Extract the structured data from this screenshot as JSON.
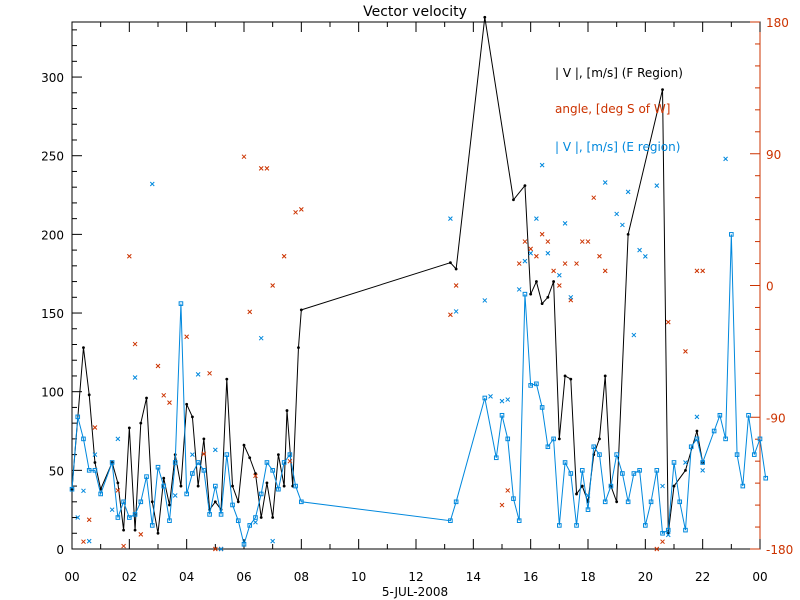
{
  "chart_data": {
    "type": "line",
    "title": "Vector velocity",
    "date_label": "5-JUL-2008",
    "x_ticks": [
      "00",
      "02",
      "04",
      "06",
      "08",
      "10",
      "12",
      "14",
      "16",
      "18",
      "20",
      "22",
      "00"
    ],
    "x_range_hours": [
      0,
      24
    ],
    "y_left_ticks": [
      "0",
      "50",
      "100",
      "150",
      "200",
      "250",
      "300"
    ],
    "y_left_range": [
      0,
      335
    ],
    "y_right_ticks": [
      "-180",
      "-90",
      "0",
      "90",
      "180"
    ],
    "y_right_range": [
      -180,
      180
    ],
    "legend": [
      {
        "label": "| V |, [m/s] (F Region)",
        "color": "#000000"
      },
      {
        "label": "angle, [deg S of W]",
        "color": "#cc3300"
      },
      {
        "label": "| V |, [m/s] (E region)",
        "color": "#0088dd"
      }
    ],
    "series": [
      {
        "name": "| V |, [m/s] (F Region)",
        "color": "#000000",
        "marker": "dot",
        "points": [
          [
            0.0,
            38
          ],
          [
            0.4,
            128
          ],
          [
            0.6,
            98
          ],
          [
            0.8,
            55
          ],
          [
            1.0,
            38
          ],
          [
            1.4,
            55
          ],
          [
            1.6,
            42
          ],
          [
            1.8,
            12
          ],
          [
            2.0,
            77
          ],
          [
            2.2,
            12
          ],
          [
            2.4,
            80
          ],
          [
            2.6,
            96
          ],
          [
            2.8,
            30
          ],
          [
            3.0,
            10
          ],
          [
            3.2,
            45
          ],
          [
            3.4,
            28
          ],
          [
            3.6,
            60
          ],
          [
            3.8,
            40
          ],
          [
            4.0,
            92
          ],
          [
            4.2,
            84
          ],
          [
            4.4,
            40
          ],
          [
            4.6,
            70
          ],
          [
            4.8,
            25
          ],
          [
            5.0,
            30
          ],
          [
            5.2,
            25
          ],
          [
            5.4,
            108
          ],
          [
            5.6,
            40
          ],
          [
            5.8,
            30
          ],
          [
            6.0,
            66
          ],
          [
            6.2,
            58
          ],
          [
            6.4,
            48
          ],
          [
            6.6,
            20
          ],
          [
            6.8,
            42
          ],
          [
            7.0,
            20
          ],
          [
            7.2,
            60
          ],
          [
            7.4,
            40
          ],
          [
            7.5,
            88
          ],
          [
            7.7,
            40
          ],
          [
            7.9,
            128
          ],
          [
            8.0,
            152
          ],
          [
            13.2,
            182
          ],
          [
            13.4,
            178
          ],
          [
            14.4,
            338
          ],
          [
            15.4,
            222
          ],
          [
            15.8,
            231
          ],
          [
            16.0,
            162
          ],
          [
            16.2,
            170
          ],
          [
            16.4,
            156
          ],
          [
            16.6,
            160
          ],
          [
            16.8,
            170
          ],
          [
            17.0,
            70
          ],
          [
            17.2,
            110
          ],
          [
            17.4,
            108
          ],
          [
            17.6,
            35
          ],
          [
            17.8,
            40
          ],
          [
            18.0,
            30
          ],
          [
            18.2,
            60
          ],
          [
            18.4,
            70
          ],
          [
            18.6,
            110
          ],
          [
            18.8,
            40
          ],
          [
            19.0,
            30
          ],
          [
            19.4,
            200
          ],
          [
            20.6,
            292
          ],
          [
            20.8,
            10
          ],
          [
            21.0,
            40
          ],
          [
            21.4,
            50
          ],
          [
            21.8,
            75
          ],
          [
            22.0,
            55
          ]
        ]
      },
      {
        "name": "| V |, [m/s] (E region)",
        "color": "#0088dd",
        "marker": "square",
        "points": [
          [
            0.0,
            38
          ],
          [
            0.2,
            84
          ],
          [
            0.4,
            70
          ],
          [
            0.6,
            50
          ],
          [
            0.8,
            50
          ],
          [
            1.0,
            35
          ],
          [
            1.4,
            55
          ],
          [
            1.6,
            20
          ],
          [
            1.8,
            30
          ],
          [
            2.0,
            20
          ],
          [
            2.2,
            22
          ],
          [
            2.4,
            30
          ],
          [
            2.6,
            46
          ],
          [
            2.8,
            15
          ],
          [
            3.0,
            52
          ],
          [
            3.2,
            40
          ],
          [
            3.4,
            18
          ],
          [
            3.6,
            55
          ],
          [
            3.8,
            156
          ],
          [
            4.0,
            35
          ],
          [
            4.2,
            48
          ],
          [
            4.4,
            55
          ],
          [
            4.6,
            50
          ],
          [
            4.8,
            22
          ],
          [
            5.0,
            40
          ],
          [
            5.2,
            22
          ],
          [
            5.4,
            60
          ],
          [
            5.6,
            28
          ],
          [
            5.8,
            18
          ],
          [
            6.0,
            3
          ],
          [
            6.2,
            15
          ],
          [
            6.4,
            20
          ],
          [
            6.6,
            35
          ],
          [
            6.8,
            55
          ],
          [
            7.0,
            50
          ],
          [
            7.2,
            38
          ],
          [
            7.4,
            55
          ],
          [
            7.6,
            60
          ],
          [
            7.8,
            40
          ],
          [
            8.0,
            30
          ],
          [
            13.2,
            18
          ],
          [
            13.4,
            30
          ],
          [
            14.4,
            96
          ],
          [
            14.8,
            58
          ],
          [
            15.0,
            85
          ],
          [
            15.2,
            70
          ],
          [
            15.4,
            32
          ],
          [
            15.6,
            18
          ],
          [
            15.8,
            162
          ],
          [
            16.0,
            104
          ],
          [
            16.2,
            105
          ],
          [
            16.4,
            90
          ],
          [
            16.6,
            65
          ],
          [
            16.8,
            70
          ],
          [
            17.0,
            15
          ],
          [
            17.2,
            55
          ],
          [
            17.4,
            48
          ],
          [
            17.6,
            15
          ],
          [
            17.8,
            50
          ],
          [
            18.0,
            25
          ],
          [
            18.2,
            65
          ],
          [
            18.4,
            60
          ],
          [
            18.6,
            30
          ],
          [
            18.8,
            40
          ],
          [
            19.0,
            60
          ],
          [
            19.2,
            48
          ],
          [
            19.4,
            30
          ],
          [
            19.6,
            48
          ],
          [
            19.8,
            50
          ],
          [
            20.0,
            15
          ],
          [
            20.2,
            30
          ],
          [
            20.4,
            50
          ],
          [
            20.6,
            10
          ],
          [
            20.8,
            12
          ],
          [
            21.0,
            55
          ],
          [
            21.2,
            30
          ],
          [
            21.4,
            12
          ],
          [
            21.6,
            65
          ],
          [
            21.8,
            70
          ],
          [
            22.0,
            55
          ],
          [
            22.4,
            75
          ],
          [
            22.6,
            85
          ],
          [
            22.8,
            70
          ],
          [
            23.0,
            200
          ],
          [
            23.2,
            60
          ],
          [
            23.4,
            40
          ],
          [
            23.6,
            85
          ],
          [
            23.8,
            60
          ],
          [
            24.0,
            70
          ],
          [
            24.2,
            45
          ]
        ]
      },
      {
        "name": "angle, [deg S of W]",
        "color": "#cc3300",
        "marker": "x",
        "axis": "right",
        "points": [
          [
            0.4,
            -175
          ],
          [
            0.6,
            -160
          ],
          [
            0.8,
            -97
          ],
          [
            1.6,
            -140
          ],
          [
            1.8,
            -178
          ],
          [
            2.0,
            20
          ],
          [
            2.2,
            -40
          ],
          [
            2.4,
            -170
          ],
          [
            3.0,
            -55
          ],
          [
            3.2,
            -75
          ],
          [
            3.4,
            -80
          ],
          [
            4.0,
            -35
          ],
          [
            4.6,
            -115
          ],
          [
            4.8,
            -60
          ],
          [
            5.0,
            -180
          ],
          [
            5.2,
            -180
          ],
          [
            6.0,
            88
          ],
          [
            6.2,
            -18
          ],
          [
            6.4,
            -130
          ],
          [
            6.6,
            80
          ],
          [
            6.8,
            80
          ],
          [
            7.0,
            0
          ],
          [
            7.4,
            20
          ],
          [
            7.6,
            -120
          ],
          [
            7.8,
            50
          ],
          [
            8.0,
            52
          ],
          [
            13.2,
            -20
          ],
          [
            13.4,
            0
          ],
          [
            15.0,
            -150
          ],
          [
            15.2,
            -140
          ],
          [
            15.6,
            15
          ],
          [
            15.8,
            30
          ],
          [
            16.0,
            25
          ],
          [
            16.2,
            20
          ],
          [
            16.4,
            35
          ],
          [
            16.6,
            30
          ],
          [
            16.8,
            10
          ],
          [
            17.0,
            0
          ],
          [
            17.2,
            15
          ],
          [
            17.4,
            -10
          ],
          [
            17.6,
            15
          ],
          [
            17.8,
            30
          ],
          [
            18.0,
            30
          ],
          [
            18.2,
            60
          ],
          [
            18.4,
            20
          ],
          [
            18.6,
            10
          ],
          [
            20.4,
            -180
          ],
          [
            20.6,
            -175
          ],
          [
            20.8,
            -25
          ],
          [
            21.4,
            -45
          ],
          [
            21.8,
            10
          ],
          [
            22.0,
            10
          ]
        ]
      },
      {
        "name": "",
        "color": "#0088dd",
        "marker": "x",
        "axis": "left",
        "points": [
          [
            0.2,
            20
          ],
          [
            0.4,
            37
          ],
          [
            0.6,
            5
          ],
          [
            0.8,
            60
          ],
          [
            1.4,
            25
          ],
          [
            1.6,
            70
          ],
          [
            2.2,
            109
          ],
          [
            2.8,
            232
          ],
          [
            3.6,
            34
          ],
          [
            4.2,
            60
          ],
          [
            4.4,
            111
          ],
          [
            5.0,
            63
          ],
          [
            5.2,
            0
          ],
          [
            6.4,
            17
          ],
          [
            6.6,
            134
          ],
          [
            7.0,
            5
          ],
          [
            13.2,
            210
          ],
          [
            13.4,
            151
          ],
          [
            14.4,
            158
          ],
          [
            14.6,
            97
          ],
          [
            15.0,
            94
          ],
          [
            15.2,
            95
          ],
          [
            15.6,
            165
          ],
          [
            15.8,
            183
          ],
          [
            16.0,
            188
          ],
          [
            16.2,
            210
          ],
          [
            16.4,
            244
          ],
          [
            16.6,
            188
          ],
          [
            17.0,
            174
          ],
          [
            17.2,
            207
          ],
          [
            17.4,
            160
          ],
          [
            18.0,
            34
          ],
          [
            18.6,
            233
          ],
          [
            19.0,
            213
          ],
          [
            19.2,
            206
          ],
          [
            19.4,
            227
          ],
          [
            19.6,
            136
          ],
          [
            19.8,
            190
          ],
          [
            20.0,
            186
          ],
          [
            20.4,
            231
          ],
          [
            20.6,
            40
          ],
          [
            20.8,
            9
          ],
          [
            21.4,
            55
          ],
          [
            21.8,
            84
          ],
          [
            22.0,
            50
          ],
          [
            22.8,
            248
          ]
        ]
      }
    ]
  }
}
